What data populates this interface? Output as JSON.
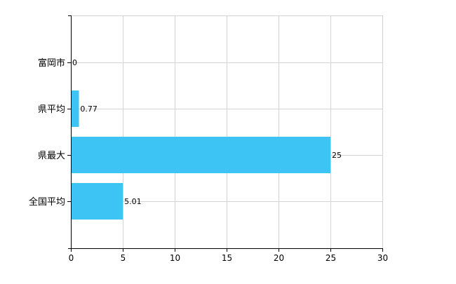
{
  "chart_data": {
    "type": "bar",
    "orientation": "horizontal",
    "categories": [
      "富岡市",
      "県平均",
      "県最大",
      "全国平均"
    ],
    "values": [
      0,
      0.77,
      25,
      5.01
    ],
    "data_labels": [
      "0",
      "0.77",
      "25",
      "5.01"
    ],
    "x_ticks": [
      0,
      5,
      10,
      15,
      20,
      25,
      30
    ],
    "x_tick_labels": [
      "0",
      "5",
      "10",
      "15",
      "20",
      "25",
      "30"
    ],
    "xlim": [
      0,
      30
    ],
    "grid": true,
    "legend": "none",
    "title": "",
    "xlabel": "",
    "ylabel": ""
  },
  "colors": {
    "bar": "#3ec4f4",
    "grid": "#d3d3d3",
    "axis": "#000000"
  }
}
